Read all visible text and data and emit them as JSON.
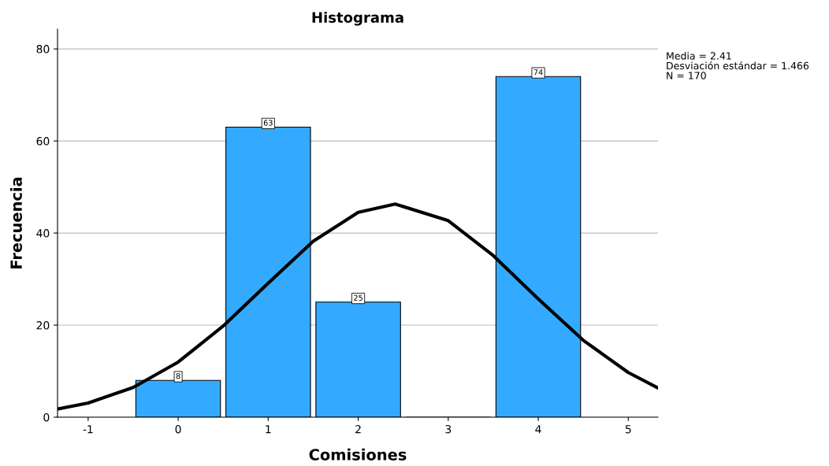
{
  "chart_data": {
    "type": "histogram",
    "title": "Histograma",
    "xlabel": "Comisiones",
    "ylabel": "Frecuencia",
    "bins": [
      -0.5,
      0.5,
      1.5,
      2.5,
      3.5,
      4.5
    ],
    "values": [
      8,
      63,
      25,
      0,
      74
    ],
    "value_labels": [
      "8",
      "63",
      "25",
      null,
      "74"
    ],
    "color": "#33aaff",
    "series": [
      {
        "type": "line",
        "color": "#000000",
        "x": [
          -1.34,
          -1,
          -0.5,
          0,
          0.5,
          1,
          1.5,
          2,
          2.41,
          3,
          3.5,
          4,
          4.5,
          5,
          5.33
        ],
        "values": [
          1.76,
          3.09,
          6.45,
          11.98,
          19.8,
          29.1,
          38.2,
          44.5,
          46.3,
          42.7,
          35.1,
          25.7,
          16.7,
          9.7,
          6.36
        ]
      }
    ],
    "xlim": [
      -1.34,
      5.33
    ],
    "xticks": [
      -1,
      0,
      1,
      2,
      3,
      4,
      5
    ],
    "ylim": [
      0,
      84.3
    ],
    "yticks": [
      0,
      20,
      40,
      60,
      80
    ],
    "grid": "y",
    "annotations": [
      "Media = 2.41",
      "Desviación estándar = 1.466",
      "N = 170"
    ]
  }
}
